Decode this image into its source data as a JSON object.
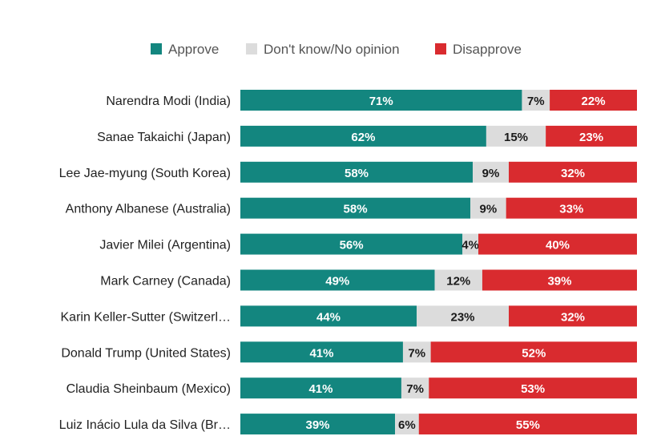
{
  "chart_data": {
    "type": "bar",
    "orientation": "horizontal",
    "stacked": true,
    "title": "",
    "xlabel": "",
    "ylabel": "",
    "xlim": [
      0,
      100
    ],
    "unit": "%",
    "grid": false,
    "legend_position": "top",
    "categories": [
      "Narendra Modi (India)",
      "Sanae Takaichi (Japan)",
      "Lee Jae-myung (South Korea)",
      "Anthony Albanese (Australia)",
      "Javier Milei (Argentina)",
      "Mark Carney (Canada)",
      "Karin Keller-Sutter (Switzerl…",
      "Donald Trump (United States)",
      "Claudia Sheinbaum (Mexico)",
      "Luiz Inácio Lula da Silva (Br…"
    ],
    "series": [
      {
        "name": "Approve",
        "color": "#13867f",
        "values": [
          71,
          62,
          58,
          58,
          56,
          49,
          44,
          41,
          41,
          39
        ]
      },
      {
        "name": "Don't know/No opinion",
        "color": "#dcdcdc",
        "values": [
          7,
          15,
          9,
          9,
          4,
          12,
          23,
          7,
          7,
          6
        ]
      },
      {
        "name": "Disapprove",
        "color": "#d92b2f",
        "values": [
          22,
          23,
          32,
          33,
          40,
          39,
          32,
          52,
          53,
          55
        ]
      }
    ]
  }
}
